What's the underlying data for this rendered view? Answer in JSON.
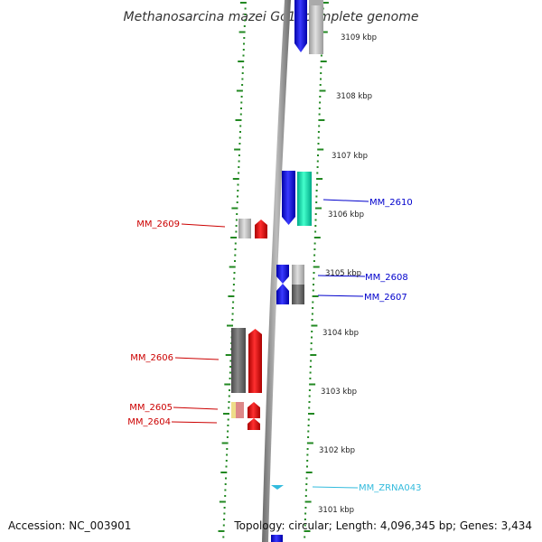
{
  "title": "Methanosarcina mazei Go1, complete genome",
  "accession_text": "Accession: NC_003901",
  "topology_text": "Topology: circular; Length: 4,096,345 bp; Genes: 3,434",
  "colors": {
    "red_label": "#cc0000",
    "blue_label": "#0000cc",
    "cyan_label": "#33bbdd",
    "backbone": "#8a8a8a",
    "ruler_green": "#228822"
  },
  "kbp_labels": [
    "3109 kbp",
    "3108 kbp",
    "3107 kbp",
    "3106 kbp",
    "3105 kbp",
    "3104 kbp",
    "3103 kbp",
    "3102 kbp",
    "3101 kbp"
  ],
  "gene_labels": {
    "mm_2610": "MM_2610",
    "mm_2609": "MM_2609",
    "mm_2608": "MM_2608",
    "mm_2607": "MM_2607",
    "mm_2606": "MM_2606",
    "mm_2605": "MM_2605",
    "mm_2604": "MM_2604",
    "mm_zrna043": "MM_ZRNA043"
  }
}
